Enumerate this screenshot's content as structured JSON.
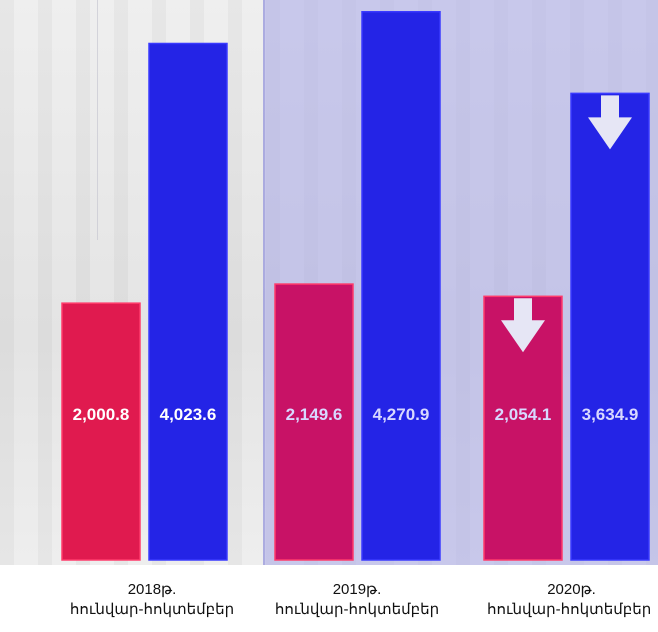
{
  "chart_data": {
    "type": "bar",
    "categories": [
      {
        "year": "2018թ.",
        "period": "հունվար-հոկտեմբեր"
      },
      {
        "year": "2019թ.",
        "period": "հունվար-հոկտեմբեր"
      },
      {
        "year": "2020թ.",
        "period": "հունվար-հոկտեմբեր"
      }
    ],
    "series": [
      {
        "color": "#e01a4f",
        "highlight_color": "#c81266",
        "values": [
          2000.8,
          2149.6,
          2054.1
        ],
        "labels": [
          "2,000.8",
          "2,149.6",
          "2,054.1"
        ]
      },
      {
        "color": "#2424e6",
        "highlight_color": "#2424e6",
        "values": [
          4023.6,
          4270.9,
          3634.9
        ],
        "labels": [
          "4,023.6",
          "4,270.9",
          "3,634.9"
        ]
      }
    ],
    "decline_markers": [
      {
        "category_index": 2,
        "series_index": 0,
        "icon": "down-arrow-icon"
      },
      {
        "category_index": 2,
        "series_index": 1,
        "icon": "down-arrow-icon"
      }
    ],
    "highlighted_categories": [
      1,
      2
    ],
    "ylim": [
      0,
      4300
    ],
    "grid": false,
    "legend": "none",
    "title": "",
    "xlabel": "",
    "ylabel": ""
  }
}
